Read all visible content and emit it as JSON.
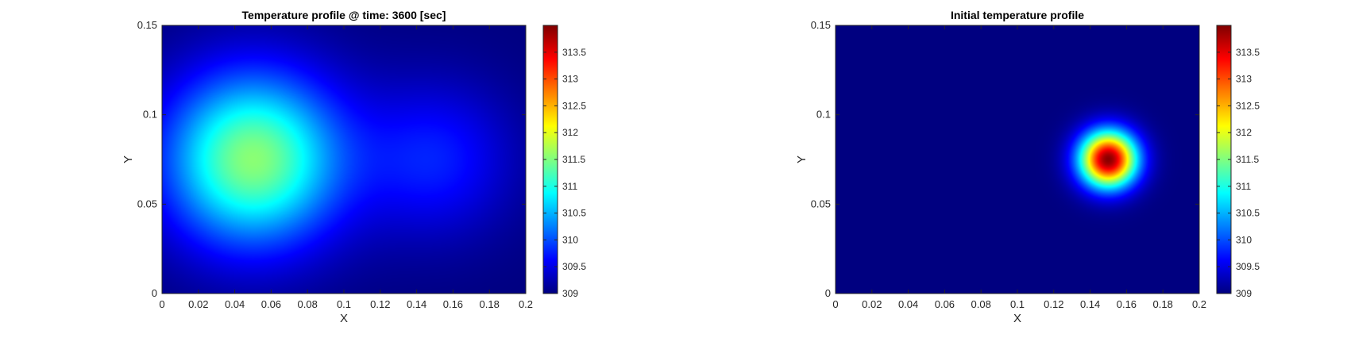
{
  "chart_data": [
    {
      "type": "heatmap",
      "title": "Temperature profile @ time: 3600 [sec]",
      "xlabel": "X",
      "ylabel": "Y",
      "xlim": [
        0,
        0.2
      ],
      "ylim": [
        0,
        0.15
      ],
      "xticks": [
        "0",
        "0.02",
        "0.04",
        "0.06",
        "0.08",
        "0.1",
        "0.12",
        "0.14",
        "0.16",
        "0.18",
        "0.2"
      ],
      "yticks": [
        "0",
        "0.05",
        "0.1",
        "0.15"
      ],
      "colormap": "jet",
      "clim": [
        309,
        314
      ],
      "colorbar_ticks": [
        "309",
        "309.5",
        "310",
        "310.5",
        "311",
        "311.5",
        "312",
        "312.5",
        "313",
        "313.5"
      ],
      "field": {
        "base": 309.0,
        "sources": [
          {
            "x": 0.05,
            "y": 0.075,
            "amplitude": 2.55,
            "sigma": 0.034
          },
          {
            "x": 0.15,
            "y": 0.075,
            "amplitude": 0.75,
            "sigma": 0.03
          }
        ]
      }
    },
    {
      "type": "heatmap",
      "title": "Initial temperature profile",
      "xlabel": "X",
      "ylabel": "Y",
      "xlim": [
        0,
        0.2
      ],
      "ylim": [
        0,
        0.15
      ],
      "xticks": [
        "0",
        "0.02",
        "0.04",
        "0.06",
        "0.08",
        "0.1",
        "0.12",
        "0.14",
        "0.16",
        "0.18",
        "0.2"
      ],
      "yticks": [
        "0",
        "0.05",
        "0.1",
        "0.15"
      ],
      "colormap": "jet",
      "clim": [
        309,
        314
      ],
      "colorbar_ticks": [
        "309",
        "309.5",
        "310",
        "310.5",
        "311",
        "311.5",
        "312",
        "312.5",
        "313",
        "313.5"
      ],
      "field": {
        "base": 309.0,
        "sources": [
          {
            "x": 0.15,
            "y": 0.075,
            "amplitude": 4.95,
            "sigma": 0.011
          }
        ]
      }
    }
  ]
}
